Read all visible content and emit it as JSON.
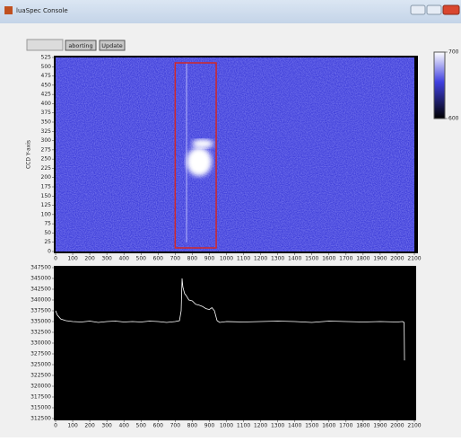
{
  "window": {
    "title": "luaSpec Console"
  },
  "toolbar": {
    "buttons": [
      "aborting",
      "Update"
    ]
  },
  "chart_data": [
    {
      "type": "image",
      "ylabel": "CCD Y-axis",
      "color": "#3c3cd8",
      "xlim": [
        0,
        2100
      ],
      "ylim": [
        0,
        525
      ],
      "xticks": [
        0,
        100,
        200,
        300,
        400,
        500,
        600,
        700,
        800,
        900,
        1000,
        1100,
        1200,
        1300,
        1400,
        1500,
        1600,
        1700,
        1800,
        1900,
        2000,
        2100
      ],
      "yticks": [
        0,
        25,
        50,
        75,
        100,
        125,
        150,
        175,
        200,
        225,
        250,
        275,
        300,
        325,
        350,
        375,
        400,
        425,
        450,
        475,
        500,
        525
      ],
      "roi": {
        "color": "#d02828",
        "x": [
          700,
          940
        ]
      },
      "colorbar": {
        "lim": [
          600,
          700
        ],
        "ticks": [
          600,
          700
        ]
      }
    },
    {
      "type": "line",
      "color": "#ffffff",
      "x": [
        0,
        10,
        30,
        60,
        100,
        150,
        200,
        250,
        300,
        350,
        400,
        450,
        500,
        550,
        600,
        650,
        700,
        725,
        735,
        740,
        745,
        755,
        765,
        780,
        800,
        820,
        840,
        860,
        880,
        900,
        915,
        930,
        945,
        960,
        1000,
        1100,
        1200,
        1300,
        1400,
        1500,
        1600,
        1700,
        1800,
        1900,
        2000,
        2030,
        2040,
        2042
      ],
      "values": [
        337500,
        336500,
        335600,
        335200,
        335000,
        334900,
        335100,
        334800,
        335000,
        335100,
        334900,
        335000,
        334900,
        335100,
        335000,
        334800,
        335000,
        335200,
        337500,
        345000,
        343000,
        341500,
        341000,
        340000,
        339800,
        339000,
        338800,
        338500,
        338000,
        337800,
        338200,
        337500,
        335200,
        334800,
        335000,
        334900,
        335000,
        335100,
        335000,
        334800,
        335100,
        335000,
        334900,
        335000,
        334900,
        335000,
        334800,
        326000
      ],
      "xlim": [
        0,
        2100
      ],
      "ylim": [
        312500,
        347500
      ],
      "xticks": [
        0,
        100,
        200,
        300,
        400,
        500,
        600,
        700,
        800,
        900,
        1000,
        1100,
        1200,
        1300,
        1400,
        1500,
        1600,
        1700,
        1800,
        1900,
        2000,
        2100
      ],
      "yticks": [
        312500,
        315000,
        317500,
        320000,
        322500,
        325000,
        327500,
        330000,
        332500,
        335000,
        337500,
        340000,
        342500,
        345000,
        347500
      ]
    }
  ]
}
